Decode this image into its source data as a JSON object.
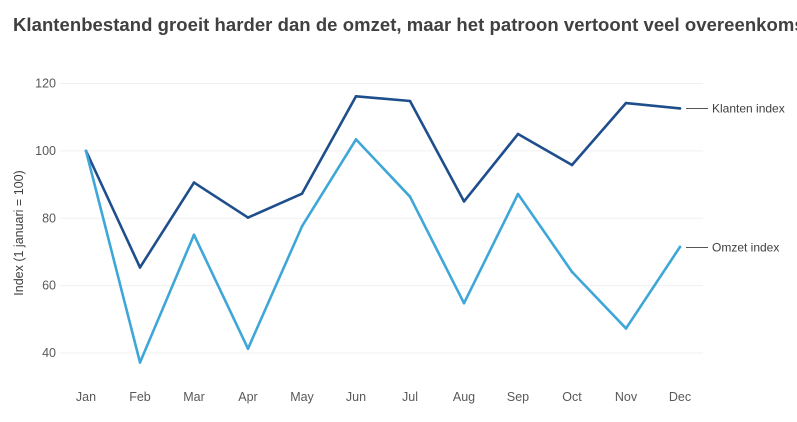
{
  "chart_data": {
    "type": "line",
    "title": "Klantenbestand groeit harder dan de omzet, maar het patroon vertoont veel overeenkomsten",
    "xlabel": "",
    "ylabel": "Index (1 januari = 100)",
    "categories": [
      "Jan",
      "Feb",
      "Mar",
      "Apr",
      "May",
      "Jun",
      "Jul",
      "Aug",
      "Sep",
      "Oct",
      "Nov",
      "Dec"
    ],
    "ylim": [
      32,
      124
    ],
    "yticks": [
      40,
      60,
      80,
      100,
      120
    ],
    "grid": true,
    "legend": "line-end labels",
    "series": [
      {
        "name": "Klanten index",
        "color": "#1f4e8c",
        "values": [
          100,
          65.4,
          90.6,
          80.2,
          87.3,
          116.2,
          114.8,
          85.0,
          105.0,
          95.8,
          114.2,
          112.6
        ]
      },
      {
        "name": "Omzet index",
        "color": "#3ea7d8",
        "values": [
          100,
          37.2,
          75.1,
          41.3,
          77.6,
          103.4,
          86.4,
          54.8,
          87.2,
          64.1,
          47.3,
          71.5
        ]
      }
    ]
  }
}
